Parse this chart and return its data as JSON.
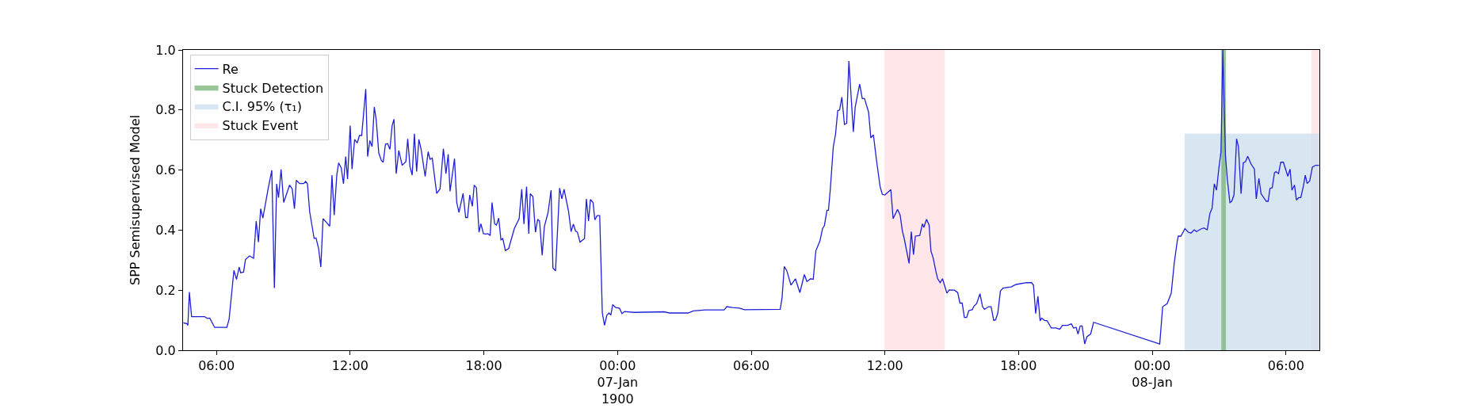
{
  "chart_data": {
    "type": "line",
    "ylabel": "SPP Semisupervised Model",
    "xlim": [
      "1900-01-06T04:30",
      "1900-01-08T07:30"
    ],
    "xticks": [
      {
        "value": "1900-01-06T06:00",
        "label": "06:00"
      },
      {
        "value": "1900-01-06T12:00",
        "label": "12:00"
      },
      {
        "value": "1900-01-06T18:00",
        "label": "18:00"
      },
      {
        "value": "1900-01-07T00:00",
        "label": "00:00\n07-Jan\n1900"
      },
      {
        "value": "1900-01-07T06:00",
        "label": "06:00"
      },
      {
        "value": "1900-01-07T12:00",
        "label": "12:00"
      },
      {
        "value": "1900-01-07T18:00",
        "label": "18:00"
      },
      {
        "value": "1900-01-08T00:00",
        "label": "00:00\n08-Jan"
      },
      {
        "value": "1900-01-08T06:00",
        "label": "06:00"
      }
    ],
    "ylim": [
      0,
      1
    ],
    "yticks": [
      {
        "value": 0,
        "label": "0.0"
      },
      {
        "value": 0.2,
        "label": "0.2"
      },
      {
        "value": 0.4,
        "label": "0.4"
      },
      {
        "value": 0.6,
        "label": "0.6"
      },
      {
        "value": 0.8,
        "label": "0.8"
      },
      {
        "value": 1,
        "label": "1.0"
      }
    ],
    "grid": false,
    "legend": "top left",
    "marker": "none",
    "line_style": "solid",
    "series": [
      {
        "name": "Re",
        "color": "#1f1fd8",
        "x": [
          "1900-01-06T04:31",
          "1900-01-06T04:40",
          "1900-01-06T04:43",
          "1900-01-06T04:47",
          "1900-01-06T04:53",
          "1900-01-06T05:28",
          "1900-01-06T05:35",
          "1900-01-06T05:42",
          "1900-01-06T05:55",
          "1900-01-06T06:28",
          "1900-01-06T06:34",
          "1900-01-06T06:47",
          "1900-01-06T06:54",
          "1900-01-06T07:01",
          "1900-01-06T07:05",
          "1900-01-06T07:13",
          "1900-01-06T07:18",
          "1900-01-06T07:29",
          "1900-01-06T07:40",
          "1900-01-06T07:47",
          "1900-01-06T07:53",
          "1900-01-06T07:59",
          "1900-01-06T08:05",
          "1900-01-06T08:19",
          "1900-01-06T08:29",
          "1900-01-06T08:36",
          "1900-01-06T08:42",
          "1900-01-06T08:47",
          "1900-01-06T08:54",
          "1900-01-06T09:01",
          "1900-01-06T09:17",
          "1900-01-06T09:24",
          "1900-01-06T09:30",
          "1900-01-06T09:35",
          "1900-01-06T09:44",
          "1900-01-06T09:55",
          "1900-01-06T10:00",
          "1900-01-06T10:05",
          "1900-01-06T10:11",
          "1900-01-06T10:23",
          "1900-01-06T10:28",
          "1900-01-06T10:35",
          "1900-01-06T10:41",
          "1900-01-06T10:47",
          "1900-01-06T10:58",
          "1900-01-06T11:05",
          "1900-01-06T11:11",
          "1900-01-06T11:17",
          "1900-01-06T11:24",
          "1900-01-06T11:29",
          "1900-01-06T11:36",
          "1900-01-06T11:42",
          "1900-01-06T11:48",
          "1900-01-06T11:53",
          "1900-01-06T12:00",
          "1900-01-06T12:05",
          "1900-01-06T12:12",
          "1900-01-06T12:19",
          "1900-01-06T12:25",
          "1900-01-06T12:31",
          "1900-01-06T12:42",
          "1900-01-06T12:47",
          "1900-01-06T12:53",
          "1900-01-06T12:59",
          "1900-01-06T13:05",
          "1900-01-06T13:10",
          "1900-01-06T13:17",
          "1900-01-06T13:24",
          "1900-01-06T13:29",
          "1900-01-06T13:35",
          "1900-01-06T13:41",
          "1900-01-06T13:47",
          "1900-01-06T13:53",
          "1900-01-06T13:58",
          "1900-01-06T14:04",
          "1900-01-06T14:11",
          "1900-01-06T14:20",
          "1900-01-06T14:30",
          "1900-01-06T14:35",
          "1900-01-06T14:41",
          "1900-01-06T14:47",
          "1900-01-06T14:53",
          "1900-01-06T14:59",
          "1900-01-06T15:05",
          "1900-01-06T15:11",
          "1900-01-06T15:22",
          "1900-01-06T15:30",
          "1900-01-06T15:35",
          "1900-01-06T15:41",
          "1900-01-06T15:53",
          "1900-01-06T16:02",
          "1900-01-06T16:11",
          "1900-01-06T16:18",
          "1900-01-06T16:24",
          "1900-01-06T16:29",
          "1900-01-06T16:41",
          "1900-01-06T16:47",
          "1900-01-06T16:53",
          "1900-01-06T17:04",
          "1900-01-06T17:11",
          "1900-01-06T17:16",
          "1900-01-06T17:22",
          "1900-01-06T17:29",
          "1900-01-06T17:34",
          "1900-01-06T17:40",
          "1900-01-06T17:47",
          "1900-01-06T17:52",
          "1900-01-06T17:59",
          "1900-01-06T18:05",
          "1900-01-06T18:11",
          "1900-01-06T18:17",
          "1900-01-06T18:22",
          "1900-01-06T18:29",
          "1900-01-06T18:34",
          "1900-01-06T18:40",
          "1900-01-06T18:46",
          "1900-01-06T18:51",
          "1900-01-06T18:58",
          "1900-01-06T19:07",
          "1900-01-06T19:22",
          "1900-01-06T19:35",
          "1900-01-06T19:42",
          "1900-01-06T19:48",
          "1900-01-06T19:55",
          "1900-01-06T20:01",
          "1900-01-06T20:05",
          "1900-01-06T20:12",
          "1900-01-06T20:19",
          "1900-01-06T20:25",
          "1900-01-06T20:30",
          "1900-01-06T20:37",
          "1900-01-06T20:43",
          "1900-01-06T20:53",
          "1900-01-06T21:01",
          "1900-01-06T21:06",
          "1900-01-06T21:13",
          "1900-01-06T21:24",
          "1900-01-06T21:30",
          "1900-01-06T21:36",
          "1900-01-06T21:48",
          "1900-01-06T21:55",
          "1900-01-06T22:01",
          "1900-01-06T22:07",
          "1900-01-06T22:12",
          "1900-01-06T22:19",
          "1900-01-06T22:31",
          "1900-01-06T22:36",
          "1900-01-06T22:42",
          "1900-01-06T22:47",
          "1900-01-06T22:54",
          "1900-01-06T22:59",
          "1900-01-06T23:05",
          "1900-01-06T23:12",
          "1900-01-06T23:19",
          "1900-01-06T23:25",
          "1900-01-06T23:31",
          "1900-01-06T23:37",
          "1900-01-06T23:42",
          "1900-01-06T23:47",
          "1900-01-06T23:55",
          "1900-01-07T00:05",
          "1900-01-07T00:12",
          "1900-01-07T00:19",
          "1900-01-07T00:44",
          "1900-01-07T02:05",
          "1900-01-07T02:20",
          "1900-01-07T03:10",
          "1900-01-07T03:24",
          "1900-01-07T03:56",
          "1900-01-07T04:47",
          "1900-01-07T04:54",
          "1900-01-07T05:10",
          "1900-01-07T05:29",
          "1900-01-07T05:41",
          "1900-01-07T07:18",
          "1900-01-07T07:23",
          "1900-01-07T07:29",
          "1900-01-07T07:36",
          "1900-01-07T07:47",
          "1900-01-07T07:59",
          "1900-01-07T08:11",
          "1900-01-07T08:23",
          "1900-01-07T08:30",
          "1900-01-07T08:40",
          "1900-01-07T08:47",
          "1900-01-07T08:54",
          "1900-01-07T09:05",
          "1900-01-07T09:12",
          "1900-01-07T09:17",
          "1900-01-07T09:24",
          "1900-01-07T09:28",
          "1900-01-07T09:33",
          "1900-01-07T09:41",
          "1900-01-07T09:47",
          "1900-01-07T09:53",
          "1900-01-07T09:58",
          "1900-01-07T10:04",
          "1900-01-07T10:11",
          "1900-01-07T10:17",
          "1900-01-07T10:23",
          "1900-01-07T10:35",
          "1900-01-07T10:40",
          "1900-01-07T10:52",
          "1900-01-07T10:59",
          "1900-01-07T11:05",
          "1900-01-07T11:16",
          "1900-01-07T11:22",
          "1900-01-07T11:29",
          "1900-01-07T11:37",
          "1900-01-07T11:47",
          "1900-01-07T11:53",
          "1900-01-07T12:00",
          "1900-01-07T12:16",
          "1900-01-07T12:22",
          "1900-01-07T12:34",
          "1900-01-07T12:41",
          "1900-01-07T12:47",
          "1900-01-07T12:52",
          "1900-01-07T13:05",
          "1900-01-07T13:11",
          "1900-01-07T13:17",
          "1900-01-07T13:22",
          "1900-01-07T13:34",
          "1900-01-07T13:41",
          "1900-01-07T13:45",
          "1900-01-07T13:52",
          "1900-01-07T13:59",
          "1900-01-07T14:04",
          "1900-01-07T14:10",
          "1900-01-07T14:17",
          "1900-01-07T14:22",
          "1900-01-07T14:29",
          "1900-01-07T14:35",
          "1900-01-07T14:47",
          "1900-01-07T14:53",
          "1900-01-07T15:07",
          "1900-01-07T15:16",
          "1900-01-07T15:22",
          "1900-01-07T15:28",
          "1900-01-07T15:34",
          "1900-01-07T15:40",
          "1900-01-07T15:46",
          "1900-01-07T15:55",
          "1900-01-07T16:00",
          "1900-01-07T16:07",
          "1900-01-07T16:16",
          "1900-01-07T16:23",
          "1900-01-07T16:28",
          "1900-01-07T16:39",
          "1900-01-07T16:46",
          "1900-01-07T16:53",
          "1900-01-07T16:58",
          "1900-01-07T17:04",
          "1900-01-07T17:11",
          "1900-01-07T17:18",
          "1900-01-07T17:40",
          "1900-01-07T17:53",
          "1900-01-07T18:22",
          "1900-01-07T18:35",
          "1900-01-07T18:40",
          "1900-01-07T18:46",
          "1900-01-07T18:52",
          "1900-01-07T18:58",
          "1900-01-07T19:02",
          "1900-01-07T19:10",
          "1900-01-07T19:17",
          "1900-01-07T19:28",
          "1900-01-07T19:40",
          "1900-01-07T19:51",
          "1900-01-07T19:58",
          "1900-01-07T20:12",
          "1900-01-07T20:22",
          "1900-01-07T20:28",
          "1900-01-07T20:35",
          "1900-01-07T20:40",
          "1900-01-07T20:46",
          "1900-01-07T20:51",
          "1900-01-07T20:58",
          "1900-01-07T21:04",
          "1900-01-07T21:14",
          "1900-01-07T21:22",
          "1900-01-08T00:20",
          "1900-01-08T00:28",
          "1900-01-08T00:40",
          "1900-01-08T00:51",
          "1900-01-08T00:59",
          "1900-01-08T01:07",
          "1900-01-08T01:10",
          "1900-01-08T01:17",
          "1900-01-08T01:28",
          "1900-01-08T01:37",
          "1900-01-08T01:44",
          "1900-01-08T01:53",
          "1900-01-08T01:59",
          "1900-01-08T02:10",
          "1900-01-08T02:19",
          "1900-01-08T02:28",
          "1900-01-08T02:35",
          "1900-01-08T02:41",
          "1900-01-08T02:47",
          "1900-01-08T02:53",
          "1900-01-08T02:59",
          "1900-01-08T03:05",
          "1900-01-08T03:10",
          "1900-01-08T03:17",
          "1900-01-08T03:22",
          "1900-01-08T03:29",
          "1900-01-08T03:34",
          "1900-01-08T03:40",
          "1900-01-08T03:47",
          "1900-01-08T03:52",
          "1900-01-08T03:59",
          "1900-01-08T04:05",
          "1900-01-08T04:11",
          "1900-01-08T04:17",
          "1900-01-08T04:26",
          "1900-01-08T04:35",
          "1900-01-08T04:40",
          "1900-01-08T04:47",
          "1900-01-08T04:53",
          "1900-01-08T05:07",
          "1900-01-08T05:12",
          "1900-01-08T05:17",
          "1900-01-08T05:23",
          "1900-01-08T05:29",
          "1900-01-08T05:33",
          "1900-01-08T05:40",
          "1900-01-08T05:46",
          "1900-01-08T05:53",
          "1900-01-08T06:05",
          "1900-01-08T06:11",
          "1900-01-08T06:16",
          "1900-01-08T06:23",
          "1900-01-08T06:28",
          "1900-01-08T06:34",
          "1900-01-08T06:40",
          "1900-01-08T06:47",
          "1900-01-08T06:52",
          "1900-01-08T06:57",
          "1900-01-08T07:04",
          "1900-01-08T07:11",
          "1900-01-08T07:20",
          "1900-01-08T07:29"
        ],
        "values": [
          0.091,
          0.089,
          0.083,
          0.194,
          0.112,
          0.112,
          0.106,
          0.107,
          0.076,
          0.076,
          0.103,
          0.266,
          0.236,
          0.277,
          0.258,
          0.26,
          0.302,
          0.314,
          0.306,
          0.43,
          0.36,
          0.471,
          0.44,
          0.537,
          0.599,
          0.207,
          0.554,
          0.508,
          0.602,
          0.492,
          0.55,
          0.537,
          0.471,
          0.566,
          0.555,
          0.555,
          0.562,
          0.554,
          0.461,
          0.372,
          0.374,
          0.339,
          0.277,
          0.438,
          0.423,
          0.413,
          0.583,
          0.45,
          0.583,
          0.624,
          0.607,
          0.554,
          0.645,
          0.57,
          0.748,
          0.603,
          0.702,
          0.69,
          0.715,
          0.715,
          0.87,
          0.645,
          0.698,
          0.678,
          0.81,
          0.769,
          0.657,
          0.632,
          0.626,
          0.686,
          0.688,
          0.669,
          0.748,
          0.769,
          0.588,
          0.665,
          0.616,
          0.628,
          0.704,
          0.612,
          0.583,
          0.721,
          0.595,
          0.702,
          0.669,
          0.579,
          0.661,
          0.636,
          0.64,
          0.522,
          0.537,
          0.671,
          0.588,
          0.653,
          0.529,
          0.638,
          0.492,
          0.459,
          0.522,
          0.442,
          0.442,
          0.517,
          0.479,
          0.55,
          0.541,
          0.393,
          0.421,
          0.388,
          0.387,
          0.388,
          0.382,
          0.492,
          0.421,
          0.417,
          0.44,
          0.368,
          0.372,
          0.332,
          0.339,
          0.405,
          0.438,
          0.536,
          0.42,
          0.545,
          0.388,
          0.521,
          0.512,
          0.393,
          0.436,
          0.43,
          0.316,
          0.412,
          0.459,
          0.533,
          0.274,
          0.264,
          0.54,
          0.504,
          0.536,
          0.463,
          0.395,
          0.42,
          0.397,
          0.393,
          0.36,
          0.372,
          0.504,
          0.43,
          0.502,
          0.492,
          0.434,
          0.448,
          0.448,
          0.124,
          0.083,
          0.116,
          0.124,
          0.117,
          0.152,
          0.142,
          0.14,
          0.122,
          0.129,
          0.126,
          0.128,
          0.124,
          0.124,
          0.131,
          0.134,
          0.134,
          0.145,
          0.142,
          0.14,
          0.135,
          0.136,
          0.174,
          0.279,
          0.264,
          0.217,
          0.238,
          0.192,
          0.252,
          0.229,
          0.238,
          0.236,
          0.331,
          0.364,
          0.405,
          0.415,
          0.466,
          0.466,
          0.537,
          0.678,
          0.719,
          0.798,
          0.8,
          0.843,
          0.752,
          0.756,
          0.963,
          0.727,
          0.81,
          0.886,
          0.838,
          0.838,
          0.793,
          0.707,
          0.717,
          0.636,
          0.545,
          0.519,
          0.517,
          0.535,
          0.438,
          0.469,
          0.45,
          0.397,
          0.372,
          0.289,
          0.395,
          0.318,
          0.38,
          0.382,
          0.421,
          0.409,
          0.436,
          0.417,
          0.33,
          0.307,
          0.264,
          0.238,
          0.225,
          0.238,
          0.19,
          0.201,
          0.2,
          0.192,
          0.157,
          0.157,
          0.109,
          0.109,
          0.132,
          0.135,
          0.147,
          0.155,
          0.188,
          0.145,
          0.136,
          0.145,
          0.145,
          0.099,
          0.101,
          0.124,
          0.197,
          0.207,
          0.211,
          0.219,
          0.225,
          0.225,
          0.217,
          0.122,
          0.18,
          0.098,
          0.107,
          0.099,
          0.098,
          0.074,
          0.074,
          0.07,
          0.083,
          0.083,
          0.088,
          0.074,
          0.076,
          0.054,
          0.081,
          0.081,
          0.021,
          0.045,
          0.054,
          0.093,
          0.021,
          0.145,
          0.155,
          0.19,
          0.289,
          0.362,
          0.38,
          0.38,
          0.405,
          0.393,
          0.39,
          0.401,
          0.395,
          0.403,
          0.407,
          0.401,
          0.455,
          0.473,
          0.554,
          0.533,
          0.603,
          0.661,
          1.0,
          0.649,
          0.57,
          0.492,
          0.496,
          0.517,
          0.704,
          0.678,
          0.521,
          0.624,
          0.628,
          0.646,
          0.62,
          0.603,
          0.504,
          0.572,
          0.521,
          0.496,
          0.496,
          0.539,
          0.541,
          0.591,
          0.595,
          0.588,
          0.626,
          0.626,
          0.579,
          0.603,
          0.533,
          0.55,
          0.5,
          0.508,
          0.508,
          0.547,
          0.583,
          0.555,
          0.564,
          0.61,
          0.616,
          0.616
        ]
      },
      {
        "name": "Stuck Detection",
        "color": "#7fb87f",
        "type": "area",
        "x": [
          "1900-01-08T03:07",
          "1900-01-08T03:17"
        ],
        "values": [
          1,
          1
        ]
      },
      {
        "name": "C.I. 95% (τ₁)",
        "color": "#cfe0ef",
        "type": "area",
        "x": [
          "1900-01-08T01:28",
          "1900-01-08T07:30"
        ],
        "values": [
          0.72,
          0.72
        ]
      },
      {
        "name": "Stuck Event",
        "color": "#ffe0e4",
        "type": "area",
        "x": [
          "1900-01-07T12:00",
          "1900-01-07T14:40",
          "1900-01-07T18:00",
          "1900-01-08T07:10",
          "1900-01-08T07:30"
        ],
        "values": [
          1,
          1,
          null,
          1,
          1
        ]
      }
    ]
  }
}
